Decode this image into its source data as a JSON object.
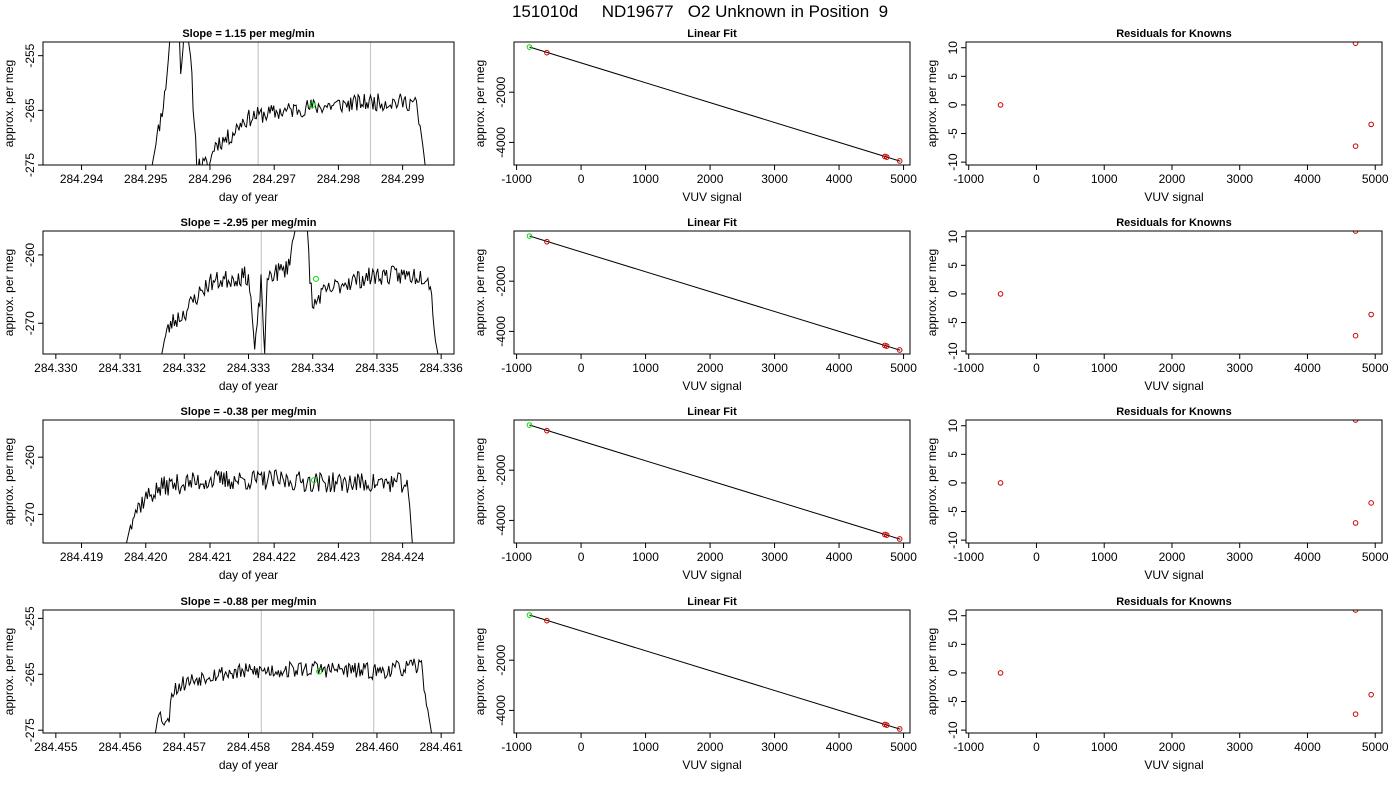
{
  "page_title": "151010d     ND19677   O2 Unknown in Position  9",
  "colors": {
    "trace": "#000000",
    "guide_line": "#c8c8c8",
    "known_point": "#cc0000",
    "unknown_point": "#00dd00",
    "frame": "#000000"
  },
  "chart_data": [
    {
      "id": "r1-trace",
      "type": "line",
      "title": "Slope =  1.15  per meg/min",
      "xlabel": "day of year",
      "ylabel": "approx. per meg",
      "xlim": [
        284.2934,
        284.2998
      ],
      "ylim": [
        -275,
        -252.5
      ],
      "xticks": [
        284.294,
        284.295,
        284.296,
        284.297,
        284.298,
        284.299
      ],
      "xtick_labels": [
        "284.294",
        "284.295",
        "284.296",
        "284.297",
        "284.298",
        "284.299"
      ],
      "yticks": [
        -275,
        -265,
        -255
      ],
      "ytick_labels": [
        "-275",
        "-265",
        "-255"
      ],
      "vlines": [
        284.29675,
        284.2985
      ],
      "unknown_point": {
        "x": 284.2976,
        "y": -264.0
      },
      "trace_keys": [
        [
          284.2951,
          -275
        ],
        [
          284.2953,
          -262
        ],
        [
          284.2954,
          -249
        ],
        [
          284.2955,
          -248
        ],
        [
          284.29555,
          -258
        ],
        [
          284.2956,
          -249
        ],
        [
          284.2957,
          -256
        ],
        [
          284.29575,
          -266
        ],
        [
          284.2958,
          -275
        ],
        [
          284.296,
          -275
        ],
        [
          284.29605,
          -272
        ],
        [
          284.2961,
          -271
        ],
        [
          284.2963,
          -270
        ],
        [
          284.2965,
          -267
        ],
        [
          284.2967,
          -266
        ],
        [
          284.2975,
          -264.5
        ],
        [
          284.2985,
          -263.5
        ],
        [
          284.2992,
          -263.5
        ],
        [
          284.29925,
          -267
        ],
        [
          284.2993,
          -270
        ],
        [
          284.29935,
          -275
        ]
      ],
      "trace_amp": 1.6,
      "trace_seed": 11
    },
    {
      "id": "r1-fit",
      "type": "scatter",
      "title": "Linear Fit",
      "xlabel": "VUV signal",
      "ylabel": "approx. per meg",
      "xlim": [
        -1040,
        5100
      ],
      "ylim": [
        -4900,
        0
      ],
      "xticks": [
        -1000,
        0,
        1000,
        2000,
        3000,
        4000,
        5000
      ],
      "xtick_labels": [
        "-1000",
        "0",
        "1000",
        "2000",
        "3000",
        "4000",
        "5000"
      ],
      "yticks": [
        -4000,
        -2000
      ],
      "ytick_labels": [
        "-4000",
        "-2000"
      ],
      "fit_line": [
        [
          -800,
          -200
        ],
        [
          4950,
          -4750
        ]
      ],
      "knowns": [
        {
          "x": -530,
          "y": -425
        },
        {
          "x": 4710,
          "y": -4560
        },
        {
          "x": 4740,
          "y": -4585
        },
        {
          "x": 4940,
          "y": -4740
        }
      ],
      "unknowns": [
        {
          "x": -800,
          "y": -200
        }
      ]
    },
    {
      "id": "r1-resid",
      "type": "scatter",
      "title": "Residuals for Knowns",
      "xlabel": "VUV signal",
      "ylabel": "approx. per meg",
      "xlim": [
        -1040,
        5100
      ],
      "ylim": [
        -10.5,
        11
      ],
      "xticks": [
        -1000,
        0,
        1000,
        2000,
        3000,
        4000,
        5000
      ],
      "xtick_labels": [
        "-1000",
        "0",
        "1000",
        "2000",
        "3000",
        "4000",
        "5000"
      ],
      "yticks": [
        -10,
        -5,
        0,
        5,
        10
      ],
      "ytick_labels": [
        "-10",
        "-5",
        "0",
        "5",
        "10"
      ],
      "knowns": [
        {
          "x": -530,
          "y": 0
        },
        {
          "x": 4710,
          "y": 10.8
        },
        {
          "x": 4710,
          "y": -7.2
        },
        {
          "x": 4940,
          "y": -3.4
        }
      ]
    },
    {
      "id": "r2-trace",
      "type": "line",
      "title": "Slope =  -2.95  per meg/min",
      "xlabel": "day of year",
      "ylabel": "approx. per meg",
      "xlim": [
        284.3298,
        284.3362
      ],
      "ylim": [
        -274.5,
        -256.5
      ],
      "xticks": [
        284.33,
        284.331,
        284.332,
        284.333,
        284.334,
        284.335,
        284.336
      ],
      "xtick_labels": [
        "284.330",
        "284.331",
        "284.332",
        "284.333",
        "284.334",
        "284.335",
        "284.336"
      ],
      "yticks": [
        -270,
        -260
      ],
      "ytick_labels": [
        "-270",
        "-260"
      ],
      "vlines": [
        284.3332,
        284.33495
      ],
      "unknown_point": {
        "x": 284.33405,
        "y": -263.5
      },
      "trace_keys": [
        [
          284.33165,
          -274.5
        ],
        [
          284.3317,
          -272
        ],
        [
          284.3318,
          -270
        ],
        [
          284.332,
          -268.5
        ],
        [
          284.3322,
          -266
        ],
        [
          284.3324,
          -264
        ],
        [
          284.3327,
          -263.5
        ],
        [
          284.333,
          -263
        ],
        [
          284.33305,
          -268
        ],
        [
          284.3331,
          -274.5
        ],
        [
          284.3332,
          -263.5
        ],
        [
          284.33325,
          -274.5
        ],
        [
          284.3333,
          -263
        ],
        [
          284.3336,
          -262
        ],
        [
          284.3337,
          -258
        ],
        [
          284.3338,
          -250
        ],
        [
          284.3339,
          -254
        ],
        [
          284.33395,
          -262
        ],
        [
          284.334,
          -268
        ],
        [
          284.3341,
          -266
        ],
        [
          284.3345,
          -264
        ],
        [
          284.335,
          -263
        ],
        [
          284.3355,
          -263
        ],
        [
          284.3358,
          -263
        ],
        [
          284.33585,
          -266
        ],
        [
          284.3359,
          -272
        ],
        [
          284.33595,
          -274.5
        ]
      ],
      "trace_amp": 1.4,
      "trace_seed": 23
    },
    {
      "id": "r2-fit",
      "type": "scatter",
      "title": "Linear Fit",
      "xlabel": "VUV signal",
      "ylabel": "approx. per meg",
      "xlim": [
        -1040,
        5100
      ],
      "ylim": [
        -4900,
        0
      ],
      "xticks": [
        -1000,
        0,
        1000,
        2000,
        3000,
        4000,
        5000
      ],
      "xtick_labels": [
        "-1000",
        "0",
        "1000",
        "2000",
        "3000",
        "4000",
        "5000"
      ],
      "yticks": [
        -4000,
        -2000
      ],
      "ytick_labels": [
        "-4000",
        "-2000"
      ],
      "fit_line": [
        [
          -800,
          -200
        ],
        [
          4950,
          -4750
        ]
      ],
      "knowns": [
        {
          "x": -530,
          "y": -425
        },
        {
          "x": 4710,
          "y": -4560
        },
        {
          "x": 4740,
          "y": -4585
        },
        {
          "x": 4940,
          "y": -4740
        }
      ],
      "unknowns": [
        {
          "x": -800,
          "y": -200
        }
      ]
    },
    {
      "id": "r2-resid",
      "type": "scatter",
      "title": "Residuals for Knowns",
      "xlabel": "VUV signal",
      "ylabel": "approx. per meg",
      "xlim": [
        -1040,
        5100
      ],
      "ylim": [
        -10.5,
        11
      ],
      "xticks": [
        -1000,
        0,
        1000,
        2000,
        3000,
        4000,
        5000
      ],
      "xtick_labels": [
        "-1000",
        "0",
        "1000",
        "2000",
        "3000",
        "4000",
        "5000"
      ],
      "yticks": [
        -10,
        -5,
        0,
        5,
        10
      ],
      "ytick_labels": [
        "-10",
        "-5",
        "0",
        "5",
        "10"
      ],
      "knowns": [
        {
          "x": -530,
          "y": 0
        },
        {
          "x": 4710,
          "y": 11
        },
        {
          "x": 4710,
          "y": -7.3
        },
        {
          "x": 4940,
          "y": -3.6
        }
      ]
    },
    {
      "id": "r3-trace",
      "type": "line",
      "title": "Slope =  -0.38  per meg/min",
      "xlabel": "day of year",
      "ylabel": "approx. per meg",
      "xlim": [
        284.4184,
        284.4248
      ],
      "ylim": [
        -275,
        -253.5
      ],
      "xticks": [
        284.419,
        284.42,
        284.421,
        284.422,
        284.423,
        284.424
      ],
      "xtick_labels": [
        "284.419",
        "284.420",
        "284.421",
        "284.422",
        "284.423",
        "284.424"
      ],
      "yticks": [
        -270,
        -260
      ],
      "ytick_labels": [
        "-270",
        "-260"
      ],
      "vlines": [
        284.42175,
        284.4235
      ],
      "unknown_point": {
        "x": 284.42262,
        "y": -264.0
      },
      "trace_keys": [
        [
          284.4197,
          -275
        ],
        [
          284.4198,
          -270
        ],
        [
          284.42,
          -267
        ],
        [
          284.4203,
          -265
        ],
        [
          284.421,
          -264
        ],
        [
          284.422,
          -264
        ],
        [
          284.423,
          -264.5
        ],
        [
          284.42405,
          -264.5
        ],
        [
          284.4241,
          -267
        ],
        [
          284.42415,
          -275
        ]
      ],
      "trace_amp": 1.8,
      "trace_seed": 37
    },
    {
      "id": "r3-fit",
      "type": "scatter",
      "title": "Linear Fit",
      "xlabel": "VUV signal",
      "ylabel": "approx. per meg",
      "xlim": [
        -1040,
        5100
      ],
      "ylim": [
        -4900,
        0
      ],
      "xticks": [
        -1000,
        0,
        1000,
        2000,
        3000,
        4000,
        5000
      ],
      "xtick_labels": [
        "-1000",
        "0",
        "1000",
        "2000",
        "3000",
        "4000",
        "5000"
      ],
      "yticks": [
        -4000,
        -2000
      ],
      "ytick_labels": [
        "-4000",
        "-2000"
      ],
      "fit_line": [
        [
          -800,
          -200
        ],
        [
          4950,
          -4750
        ]
      ],
      "knowns": [
        {
          "x": -530,
          "y": -425
        },
        {
          "x": 4710,
          "y": -4560
        },
        {
          "x": 4740,
          "y": -4585
        },
        {
          "x": 4940,
          "y": -4740
        }
      ],
      "unknowns": [
        {
          "x": -800,
          "y": -200
        }
      ]
    },
    {
      "id": "r3-resid",
      "type": "scatter",
      "title": "Residuals for Knowns",
      "xlabel": "VUV signal",
      "ylabel": "approx. per meg",
      "xlim": [
        -1040,
        5100
      ],
      "ylim": [
        -10.5,
        11
      ],
      "xticks": [
        -1000,
        0,
        1000,
        2000,
        3000,
        4000,
        5000
      ],
      "xtick_labels": [
        "-1000",
        "0",
        "1000",
        "2000",
        "3000",
        "4000",
        "5000"
      ],
      "yticks": [
        -10,
        -5,
        0,
        5,
        10
      ],
      "ytick_labels": [
        "-10",
        "-5",
        "0",
        "5",
        "10"
      ],
      "knowns": [
        {
          "x": -530,
          "y": 0
        },
        {
          "x": 4710,
          "y": 11
        },
        {
          "x": 4710,
          "y": -7.0
        },
        {
          "x": 4940,
          "y": -3.5
        }
      ]
    },
    {
      "id": "r4-trace",
      "type": "line",
      "title": "Slope =  -0.88  per meg/min",
      "xlabel": "day of year",
      "ylabel": "approx. per meg",
      "xlim": [
        284.4548,
        284.4612
      ],
      "ylim": [
        -275.5,
        -253.5
      ],
      "xticks": [
        284.455,
        284.456,
        284.457,
        284.458,
        284.459,
        284.46,
        284.461
      ],
      "xtick_labels": [
        "284.455",
        "284.456",
        "284.457",
        "284.458",
        "284.459",
        "284.460",
        "284.461"
      ],
      "yticks": [
        -275,
        -265,
        -255
      ],
      "ytick_labels": [
        "-275",
        "-265",
        "-255"
      ],
      "vlines": [
        284.4582,
        284.45995
      ],
      "unknown_point": {
        "x": 284.4591,
        "y": -264.5
      },
      "trace_keys": [
        [
          284.45655,
          -275.5
        ],
        [
          284.4566,
          -272
        ],
        [
          284.45675,
          -274
        ],
        [
          284.4568,
          -268
        ],
        [
          284.457,
          -266.5
        ],
        [
          284.4574,
          -265
        ],
        [
          284.458,
          -264.5
        ],
        [
          284.459,
          -264
        ],
        [
          284.46,
          -264.5
        ],
        [
          284.4607,
          -263.5
        ],
        [
          284.46075,
          -268
        ],
        [
          284.4608,
          -272
        ],
        [
          284.46085,
          -275.5
        ]
      ],
      "trace_amp": 1.5,
      "trace_seed": 53
    },
    {
      "id": "r4-fit",
      "type": "scatter",
      "title": "Linear Fit",
      "xlabel": "VUV signal",
      "ylabel": "approx. per meg",
      "xlim": [
        -1040,
        5100
      ],
      "ylim": [
        -4900,
        0
      ],
      "xticks": [
        -1000,
        0,
        1000,
        2000,
        3000,
        4000,
        5000
      ],
      "xtick_labels": [
        "-1000",
        "0",
        "1000",
        "2000",
        "3000",
        "4000",
        "5000"
      ],
      "yticks": [
        -4000,
        -2000
      ],
      "ytick_labels": [
        "-4000",
        "-2000"
      ],
      "fit_line": [
        [
          -800,
          -200
        ],
        [
          4950,
          -4750
        ]
      ],
      "knowns": [
        {
          "x": -530,
          "y": -425
        },
        {
          "x": 4710,
          "y": -4560
        },
        {
          "x": 4740,
          "y": -4585
        },
        {
          "x": 4940,
          "y": -4740
        }
      ],
      "unknowns": [
        {
          "x": -800,
          "y": -200
        }
      ]
    },
    {
      "id": "r4-resid",
      "type": "scatter",
      "title": "Residuals for Knowns",
      "xlabel": "VUV signal",
      "ylabel": "approx. per meg",
      "xlim": [
        -1040,
        5100
      ],
      "ylim": [
        -10.5,
        11
      ],
      "xticks": [
        -1000,
        0,
        1000,
        2000,
        3000,
        4000,
        5000
      ],
      "xtick_labels": [
        "-1000",
        "0",
        "1000",
        "2000",
        "3000",
        "4000",
        "5000"
      ],
      "yticks": [
        -10,
        -5,
        0,
        5,
        10
      ],
      "ytick_labels": [
        "-10",
        "-5",
        "0",
        "5",
        "10"
      ],
      "knowns": [
        {
          "x": -530,
          "y": 0
        },
        {
          "x": 4710,
          "y": 11
        },
        {
          "x": 4710,
          "y": -7.2
        },
        {
          "x": 4940,
          "y": -3.8
        }
      ]
    }
  ]
}
